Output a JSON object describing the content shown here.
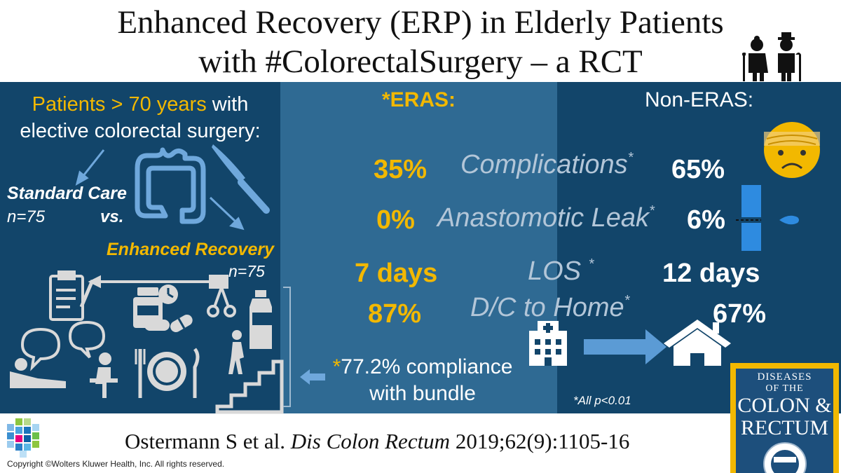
{
  "header": {
    "title_line1": "Enhanced Recovery (ERP) in Elderly Patients",
    "title_line2": "with #ColorectalSurgery – a RCT"
  },
  "cohort": {
    "highlight": "Patients > 70 years",
    "text_line1_rest": " with",
    "text_line2": "elective colorectal surgery:",
    "standard_care_label": "Standard Care",
    "standard_care_n": "n=75",
    "versus": "vs.",
    "enhanced_recovery_label": "Enhanced Recovery",
    "enhanced_recovery_n": "n=75"
  },
  "columns": {
    "eras_header": "*ERAS:",
    "non_eras_header": "Non-ERAS:"
  },
  "outcomes": [
    {
      "label": "Complications",
      "star": "*",
      "eras": "35%",
      "non_eras": "65%"
    },
    {
      "label": "Anastomotic Leak",
      "star": "*",
      "eras": "0%",
      "non_eras": "6%"
    },
    {
      "label": "LOS",
      "star": "*",
      "eras": "7 days",
      "non_eras": "12 days"
    },
    {
      "label": "D/C to Home",
      "star": "*",
      "eras": "87%",
      "non_eras": "67%"
    }
  ],
  "compliance": {
    "star": "*",
    "line1": "77.2% compliance",
    "line2": "with bundle"
  },
  "p_note": "*All p<0.01",
  "citation": {
    "authors": "Ostermann S et al. ",
    "journal": "Dis Colon Rectum",
    "details": " 2019;62(9):1105-16"
  },
  "copyright": "Copyright ©Wolters Kluwer Health, Inc. All rights reserved.",
  "journal_logo": {
    "line1": "DISEASES",
    "line2": "OF THE",
    "line3": "COLON &",
    "line4": "RECTUM"
  },
  "icons": [
    "elderly-couple-icon",
    "colon-icon",
    "scalpel-icon",
    "clipboard-icon",
    "pill-bottle-icon",
    "laparoscopic-instrument-icon",
    "clock-icon",
    "capsule-icon",
    "drink-bottle-icon",
    "counseling-icon",
    "plate-cutlery-icon",
    "walking-stairs-icon",
    "bracket-icon",
    "sad-face-bandage-icon",
    "leak-drop-icon",
    "hospital-icon",
    "arrow-right-icon",
    "home-icon",
    "journal-seal-icon"
  ],
  "colors": {
    "panel": "#12456a",
    "eras_band": "#2f6a93",
    "accent_gold": "#f2b800",
    "icon_light": "#d9d9d9",
    "leak_blue": "#2e8be0"
  }
}
